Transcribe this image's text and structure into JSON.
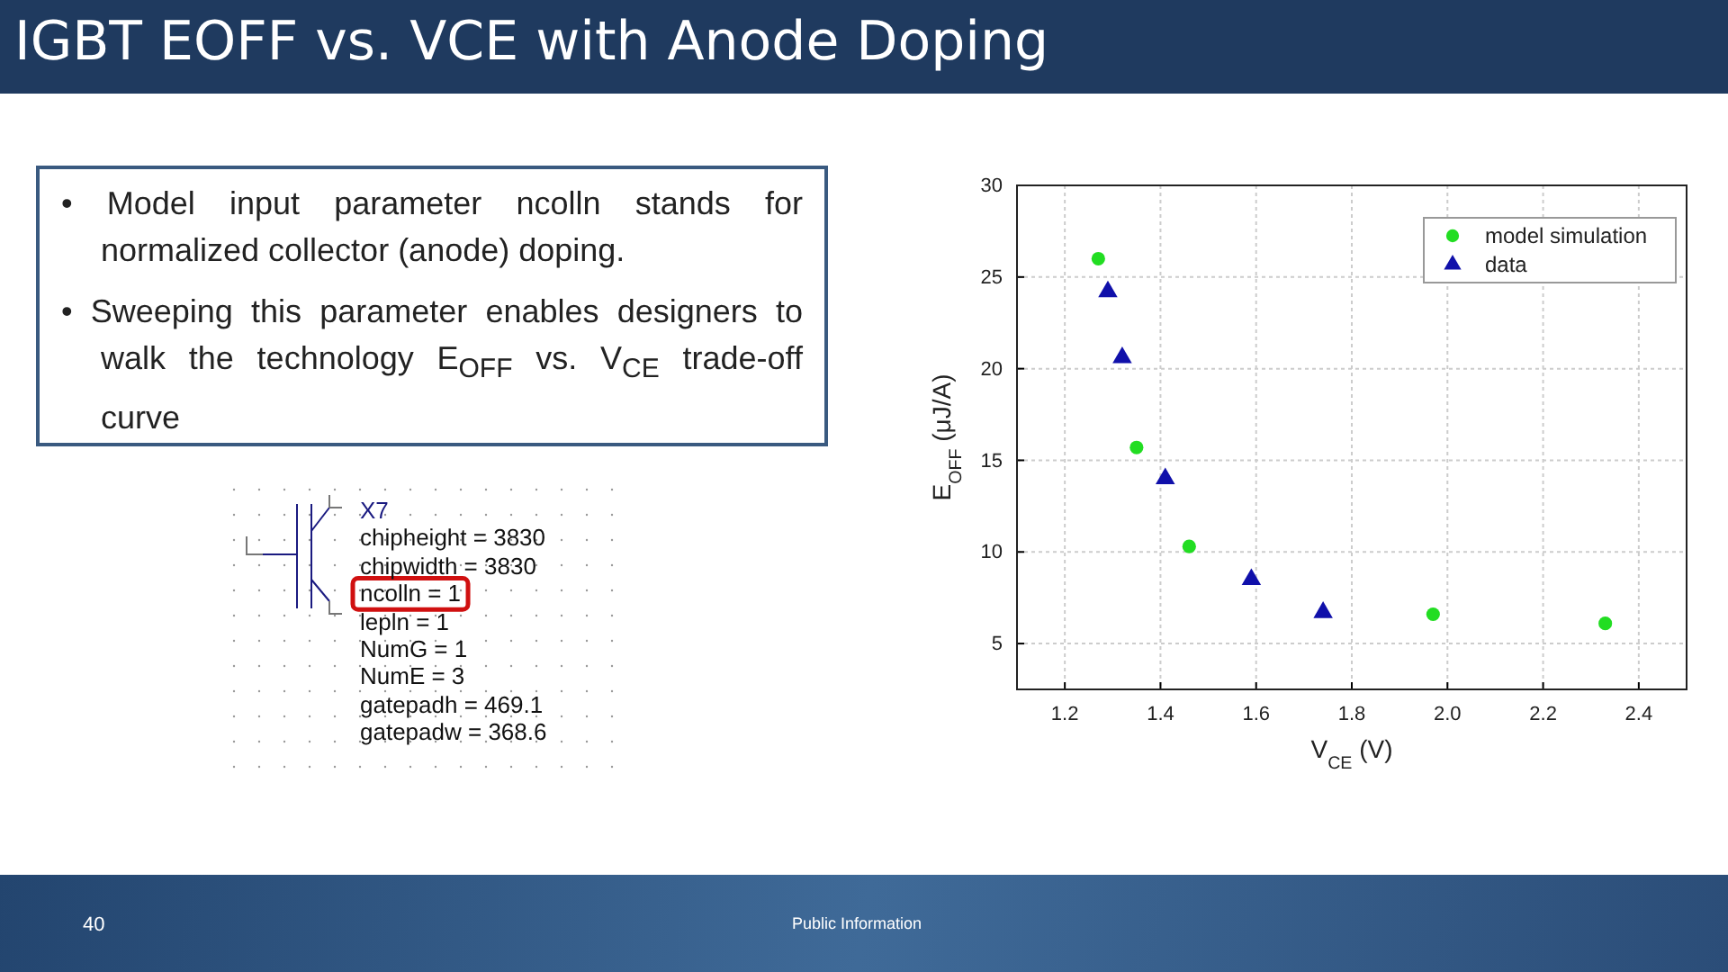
{
  "chart_data": {
    "type": "scatter",
    "title": "IGBT EOFF vs. VCE with Anode Doping",
    "xlabel": "V$_{CE}$ (V)",
    "ylabel": "E$_{OFF}$ (μJ/A)",
    "xlim": [
      1.1,
      2.5
    ],
    "xticks": [
      {
        "value": 1.2,
        "label": "1.2"
      },
      {
        "value": 1.4,
        "label": "1.4"
      },
      {
        "value": 1.6,
        "label": "1.6"
      },
      {
        "value": 1.8,
        "label": "1.8"
      },
      {
        "value": 2.0,
        "label": "2.0"
      },
      {
        "value": 2.2,
        "label": "2.2"
      },
      {
        "value": 2.4,
        "label": "2.4"
      }
    ],
    "ylim": [
      2.5,
      30
    ],
    "yticks": [
      5,
      10,
      15,
      20,
      25,
      30
    ],
    "grid": true,
    "legend": "top right",
    "series": [
      {
        "name": "model simulation",
        "color": "#22dd22",
        "marker": "circle",
        "x": [
          1.27,
          1.35,
          1.46,
          1.97,
          2.33
        ],
        "values": [
          26.0,
          15.7,
          10.3,
          6.6,
          6.1
        ]
      },
      {
        "name": "data",
        "color": "#1010aa",
        "marker": "triangle",
        "x": [
          1.29,
          1.32,
          1.41,
          1.59,
          1.74
        ],
        "values": [
          24.2,
          20.6,
          14.0,
          8.5,
          6.7
        ]
      }
    ],
    "annotations": [
      "• Model input parameter ncolln stands for normalized collector (anode) doping.",
      "• Sweeping this parameter enables designers to walk the technology E$_{OFF}$ vs. V$_{CE}$ trade-off curve",
      "X7",
      "chipheight = 3830",
      "chipwidth = 3830",
      "ncolln = 1",
      "lepln = 1",
      "NumG = 1",
      "NumE = 3",
      "gatepadh = 469.1",
      "gatepadw = 368.6",
      "40",
      "Public Information"
    ]
  }
}
